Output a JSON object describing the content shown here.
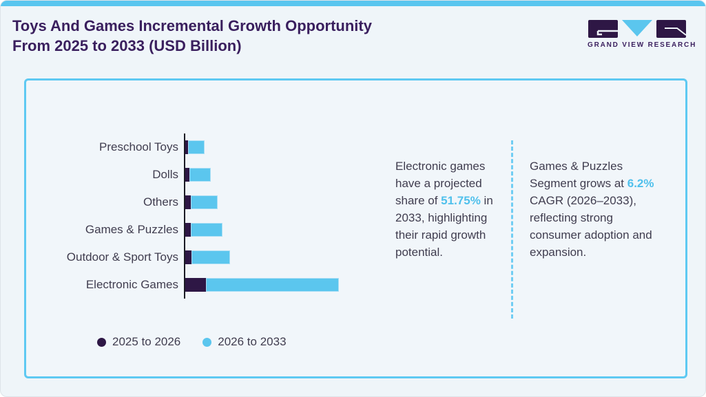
{
  "header": {
    "title_line1": "Toys And Games Incremental Growth Opportunity",
    "title_line2": "From 2025 to 2033 (USD Billion)",
    "logo_text": "GRAND VIEW RESEARCH"
  },
  "colors": {
    "title_purple": "#3a1f5e",
    "bar_dark_purple": "#2e1745",
    "bar_light_blue": "#5bc6ee",
    "highlight_blue": "#4fc0ec",
    "body_text": "#403d4f",
    "panel_border": "#5ec9f2",
    "topbar": "#59c5ef",
    "divider_dashed": "#70cdf3",
    "background": "#eff5f9"
  },
  "chart_data": {
    "type": "bar",
    "orientation": "horizontal",
    "stacked": true,
    "title": "Toys And Games Incremental Growth Opportunity From 2025 to 2033 (USD Billion)",
    "xlabel": "",
    "ylabel": "",
    "axis_tick_labels": "none shown (bars unlabeled, no value axis)",
    "units": "relative bar lengths measured in px (value axis not labeled)",
    "grid": false,
    "legend_position": "bottom-left",
    "categories": [
      "Preschool Toys",
      "Dolls",
      "Others",
      "Games & Puzzles",
      "Outdoor & Sport Toys",
      "Electronic Games"
    ],
    "series": [
      {
        "name": "2025 to 2026",
        "color": "#2e1745",
        "values": [
          4,
          6,
          8,
          8,
          9,
          30
        ]
      },
      {
        "name": "2026 to 2033",
        "color": "#5bc6ee",
        "values": [
          24,
          31,
          39,
          46,
          56,
          193
        ]
      }
    ]
  },
  "callouts": [
    {
      "text_before": "Electronic games have a projected share of ",
      "highlight": "51.75%",
      "text_after": " in 2033, highlighting their rapid growth potential."
    },
    {
      "text_before": "Games & Puzzles Segment grows at ",
      "highlight": "6.2%",
      "text_after": " CAGR (2026–2033), reflecting strong consumer adoption and expansion."
    }
  ]
}
